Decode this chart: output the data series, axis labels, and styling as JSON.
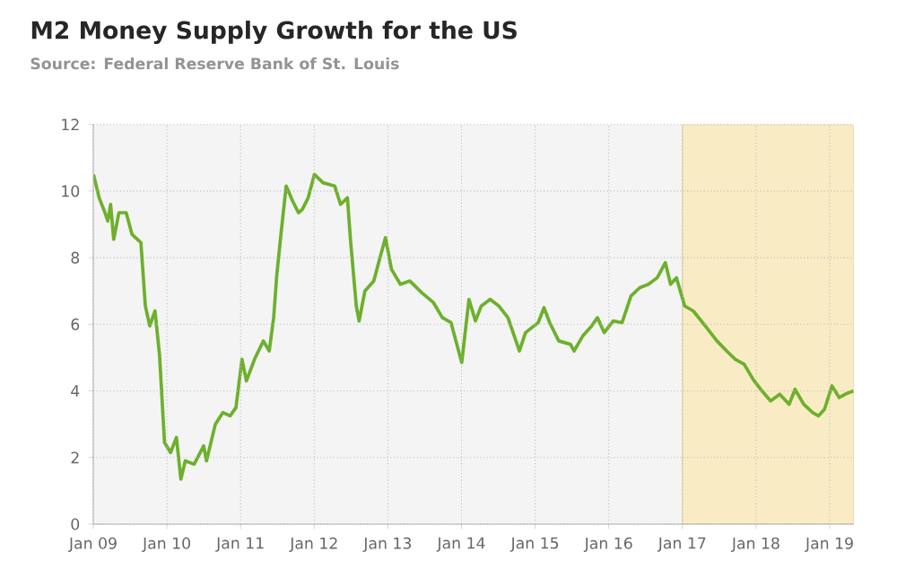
{
  "chart_data": {
    "type": "line",
    "title": "M2 Money Supply Growth for the US",
    "subtitle": "Source: Federal Reserve Bank of St. Louis",
    "xlim": [
      "2009-01-01",
      "2019-05-01"
    ],
    "ylim": [
      0,
      12
    ],
    "yticks": [
      0,
      2,
      4,
      6,
      8,
      10,
      12
    ],
    "xticks": [
      {
        "value": "2009-01-01",
        "label": "Jan 09"
      },
      {
        "value": "2010-01-01",
        "label": "Jan 10"
      },
      {
        "value": "2011-01-01",
        "label": "Jan 11"
      },
      {
        "value": "2012-01-01",
        "label": "Jan 12"
      },
      {
        "value": "2013-01-01",
        "label": "Jan 13"
      },
      {
        "value": "2014-01-01",
        "label": "Jan 14"
      },
      {
        "value": "2015-01-01",
        "label": "Jan 15"
      },
      {
        "value": "2016-01-01",
        "label": "Jan 16"
      },
      {
        "value": "2017-01-01",
        "label": "Jan 17"
      },
      {
        "value": "2018-01-01",
        "label": "Jan 18"
      },
      {
        "value": "2019-01-01",
        "label": "Jan 19"
      }
    ],
    "grid": true,
    "marker": "none",
    "line_style": "solid",
    "bands": [
      {
        "axis": "x",
        "from": "2017-01-01",
        "to": "2019-05-01",
        "color": "#f9ecc4"
      }
    ],
    "series": [
      {
        "color": "#6db02c",
        "x": [
          "2009-01-02",
          "2009-01-30",
          "2009-02-28",
          "2009-03-14",
          "2009-03-28",
          "2009-04-12",
          "2009-05-08",
          "2009-06-13",
          "2009-07-12",
          "2009-08-25",
          "2009-09-16",
          "2009-10-08",
          "2009-11-03",
          "2009-11-25",
          "2009-12-20",
          "2010-01-19",
          "2010-02-17",
          "2010-03-11",
          "2010-04-02",
          "2010-05-16",
          "2010-07-02",
          "2010-07-16",
          "2010-08-29",
          "2010-10-05",
          "2010-11-10",
          "2010-12-09",
          "2011-01-08",
          "2011-01-30",
          "2011-03-11",
          "2011-04-24",
          "2011-05-23",
          "2011-06-14",
          "2011-06-29",
          "2011-07-20",
          "2011-08-15",
          "2011-09-16",
          "2011-10-15",
          "2011-11-03",
          "2011-12-02",
          "2012-01-02",
          "2012-02-14",
          "2012-04-12",
          "2012-05-11",
          "2012-06-14",
          "2012-06-29",
          "2012-07-28",
          "2012-08-11",
          "2012-09-09",
          "2012-10-23",
          "2012-11-14",
          "2012-12-20",
          "2013-01-19",
          "2013-03-04",
          "2013-04-20",
          "2013-06-18",
          "2013-08-15",
          "2013-09-28",
          "2013-11-10",
          "2014-01-02",
          "2014-02-07",
          "2014-03-11",
          "2014-04-09",
          "2014-05-23",
          "2014-07-05",
          "2014-08-19",
          "2014-10-15",
          "2014-11-14",
          "2015-01-16",
          "2015-02-14",
          "2015-03-14",
          "2015-04-28",
          "2015-06-25",
          "2015-07-13",
          "2015-08-25",
          "2015-10-08",
          "2015-11-06",
          "2015-12-09",
          "2016-01-23",
          "2016-03-07",
          "2016-04-20",
          "2016-06-03",
          "2016-07-16",
          "2016-08-29",
          "2016-10-08",
          "2016-11-03",
          "2016-12-02",
          "2017-01-12",
          "2017-02-24",
          "2017-04-24",
          "2017-06-21",
          "2017-08-08",
          "2017-09-20",
          "2017-11-03",
          "2017-12-17",
          "2018-01-30",
          "2018-03-14",
          "2018-04-28",
          "2018-06-14",
          "2018-07-13",
          "2018-08-25",
          "2018-10-08",
          "2018-11-06",
          "2018-12-06",
          "2019-01-12",
          "2019-02-17",
          "2019-03-18",
          "2019-04-28"
        ],
        "values": [
          10.5,
          9.8,
          9.35,
          9.1,
          9.6,
          8.55,
          9.35,
          9.35,
          8.7,
          8.45,
          6.55,
          5.95,
          6.4,
          5.1,
          2.45,
          2.15,
          2.6,
          1.35,
          1.9,
          1.8,
          2.35,
          1.9,
          3.0,
          3.35,
          3.25,
          3.5,
          4.95,
          4.3,
          4.95,
          5.5,
          5.2,
          6.2,
          7.45,
          8.7,
          10.15,
          9.7,
          9.35,
          9.45,
          9.8,
          10.5,
          10.25,
          10.15,
          9.6,
          9.8,
          8.55,
          6.55,
          6.1,
          7.0,
          7.3,
          7.8,
          8.6,
          7.65,
          7.2,
          7.3,
          6.95,
          6.65,
          6.2,
          6.05,
          4.85,
          6.75,
          6.1,
          6.55,
          6.75,
          6.55,
          6.2,
          5.2,
          5.75,
          6.05,
          6.5,
          6.05,
          5.5,
          5.4,
          5.2,
          5.65,
          5.95,
          6.2,
          5.75,
          6.1,
          6.05,
          6.85,
          7.1,
          7.2,
          7.4,
          7.85,
          7.2,
          7.4,
          6.55,
          6.4,
          5.95,
          5.5,
          5.2,
          4.95,
          4.8,
          4.35,
          4.0,
          3.7,
          3.9,
          3.6,
          4.05,
          3.6,
          3.35,
          3.25,
          3.45,
          4.15,
          3.8,
          3.9,
          4.0
        ]
      }
    ]
  }
}
